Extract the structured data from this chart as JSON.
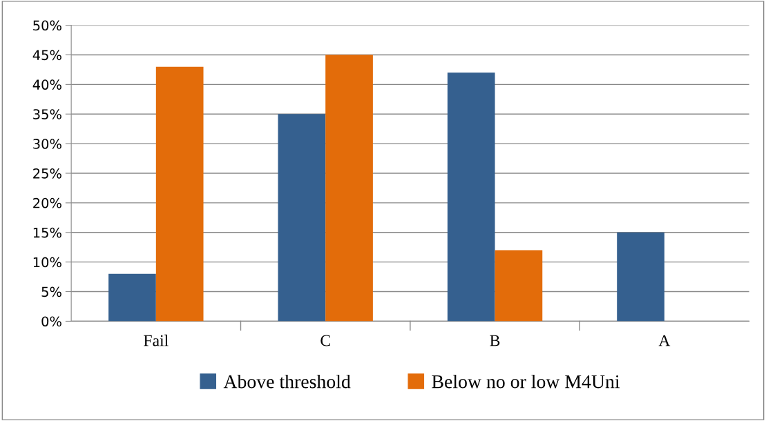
{
  "chart_data": {
    "type": "bar",
    "categories": [
      "Fail",
      "C",
      "B",
      "A"
    ],
    "series": [
      {
        "name": "Above threshold",
        "color": "#35608f",
        "values": [
          8,
          35,
          42,
          15
        ]
      },
      {
        "name": "Below no or low M4Uni",
        "color": "#e36c0a",
        "values": [
          43,
          45,
          12,
          0
        ]
      }
    ],
    "ylim": [
      0,
      50
    ],
    "yticks": [
      {
        "value": 0,
        "label": "0%"
      },
      {
        "value": 5,
        "label": "5%"
      },
      {
        "value": 10,
        "label": "10%"
      },
      {
        "value": 15,
        "label": "15%"
      },
      {
        "value": 20,
        "label": "20%"
      },
      {
        "value": 25,
        "label": "25%"
      },
      {
        "value": 30,
        "label": "30%"
      },
      {
        "value": 35,
        "label": "35%"
      },
      {
        "value": 40,
        "label": "40%"
      },
      {
        "value": 45,
        "label": "45%"
      },
      {
        "value": 50,
        "label": "50%"
      }
    ],
    "grid": "y",
    "legend": "bottom"
  }
}
